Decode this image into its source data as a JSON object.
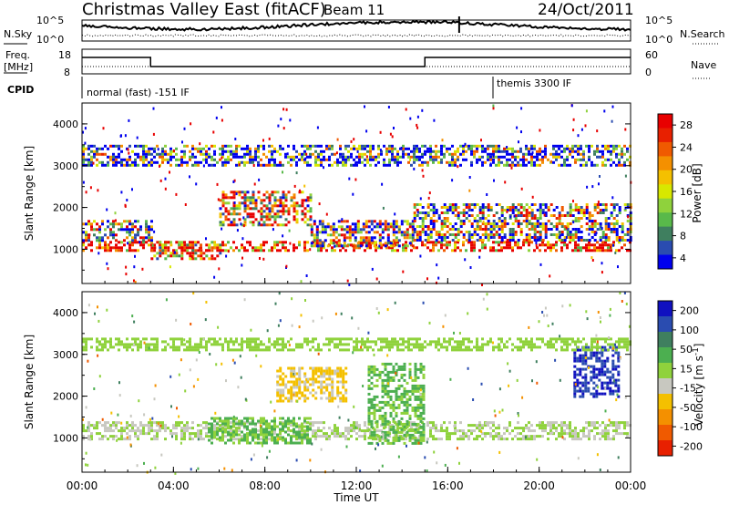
{
  "header": {
    "site": "Christmas Valley East (fitACF)",
    "beam": "Beam 11",
    "date": "24/Oct/2011"
  },
  "strip_labels": {
    "nsky": "N.Sky",
    "nsearch": "N.Search",
    "freq_line1": "Freq.",
    "freq_line2": "[MHz]",
    "nave": "Nave",
    "cpid": "CPID",
    "noise_top_left": "10^5",
    "noise_bottom_left": "10^0",
    "noise_top_right": "10^5",
    "noise_bottom_right": "10^0",
    "freq_top": "18",
    "freq_bottom": "8",
    "nave_top": "60",
    "nave_bottom": "0"
  },
  "cpid": {
    "mode1": "normal (fast) -151 IF",
    "mode2": "themis 3300 IF"
  },
  "panels": {
    "ylabel": "Slant Range [km]",
    "xlabel": "Time UT",
    "ytick_labels": [
      "1000",
      "2000",
      "3000",
      "4000"
    ],
    "xtick_labels": [
      "00:00",
      "04:00",
      "08:00",
      "12:00",
      "16:00",
      "20:00",
      "00:00"
    ]
  },
  "colorbars": {
    "power": {
      "label": "Power [dB]",
      "ticks": [
        "4",
        "8",
        "12",
        "16",
        "20",
        "24",
        "28"
      ],
      "colors": [
        "#0000ee",
        "#2a4cb0",
        "#3f7f5f",
        "#59b94a",
        "#8fd23c",
        "#d8e800",
        "#f4c000",
        "#f49000",
        "#f05a00",
        "#e82000",
        "#e80000"
      ]
    },
    "velocity": {
      "label": "Velocity [m s",
      "label_sup": "-1",
      "label_end": "]",
      "ticks": [
        "200",
        "100",
        "50",
        "15",
        "-15",
        "-50",
        "-100",
        "-200"
      ],
      "colors": [
        "#1010c0",
        "#2a4cb0",
        "#3f7f5f",
        "#4caf50",
        "#8fd23c",
        "#c8c8c0",
        "#f4c000",
        "#f49000",
        "#f05a00",
        "#e82000"
      ]
    }
  },
  "chart_data": [
    {
      "type": "heatmap",
      "title": "Power [dB]",
      "xlabel": "Time UT",
      "ylabel": "Slant Range [km]",
      "xlim": [
        "00:00",
        "24:00"
      ],
      "ylim": [
        180,
        4500
      ],
      "colorbar_range": [
        0,
        30
      ],
      "regions": [
        {
          "t_start": 0.0,
          "t_end": 24.0,
          "range_km": [
            950,
            1200
          ],
          "power_db": 28
        },
        {
          "t_start": 0.0,
          "t_end": 3.0,
          "range_km": [
            1200,
            1700
          ],
          "power_db": 14
        },
        {
          "t_start": 3.0,
          "t_end": 6.0,
          "range_km": [
            800,
            1200
          ],
          "power_db": 22
        },
        {
          "t_start": 6.0,
          "t_end": 10.0,
          "range_km": [
            1600,
            2400
          ],
          "power_db": 20
        },
        {
          "t_start": 10.0,
          "t_end": 14.5,
          "range_km": [
            1100,
            1700
          ],
          "power_db": 12
        },
        {
          "t_start": 14.5,
          "t_end": 24.0,
          "range_km": [
            1200,
            2100
          ],
          "power_db": 10
        },
        {
          "t_start": 0.0,
          "t_end": 24.0,
          "range_km": [
            3000,
            3500
          ],
          "power_db": 6
        }
      ]
    },
    {
      "type": "heatmap",
      "title": "Velocity [m s-1]",
      "xlabel": "Time UT",
      "ylabel": "Slant Range [km]",
      "xlim": [
        "00:00",
        "24:00"
      ],
      "ylim": [
        180,
        4500
      ],
      "colorbar_range": [
        -250,
        250
      ],
      "regions": [
        {
          "t_start": 0.0,
          "t_end": 24.0,
          "range_km": [
            950,
            1400
          ],
          "velocity_ms": 0
        },
        {
          "t_start": 5.5,
          "t_end": 10.0,
          "range_km": [
            900,
            1500
          ],
          "velocity_ms": 60
        },
        {
          "t_start": 8.5,
          "t_end": 11.5,
          "range_km": [
            1900,
            2700
          ],
          "velocity_ms": -60
        },
        {
          "t_start": 12.5,
          "t_end": 15.0,
          "range_km": [
            900,
            2800
          ],
          "velocity_ms": 60
        },
        {
          "t_start": 21.5,
          "t_end": 23.5,
          "range_km": [
            2000,
            3200
          ],
          "velocity_ms": 220
        },
        {
          "t_start": 0.0,
          "t_end": 24.0,
          "range_km": [
            3100,
            3400
          ],
          "velocity_ms": 20
        }
      ]
    }
  ]
}
